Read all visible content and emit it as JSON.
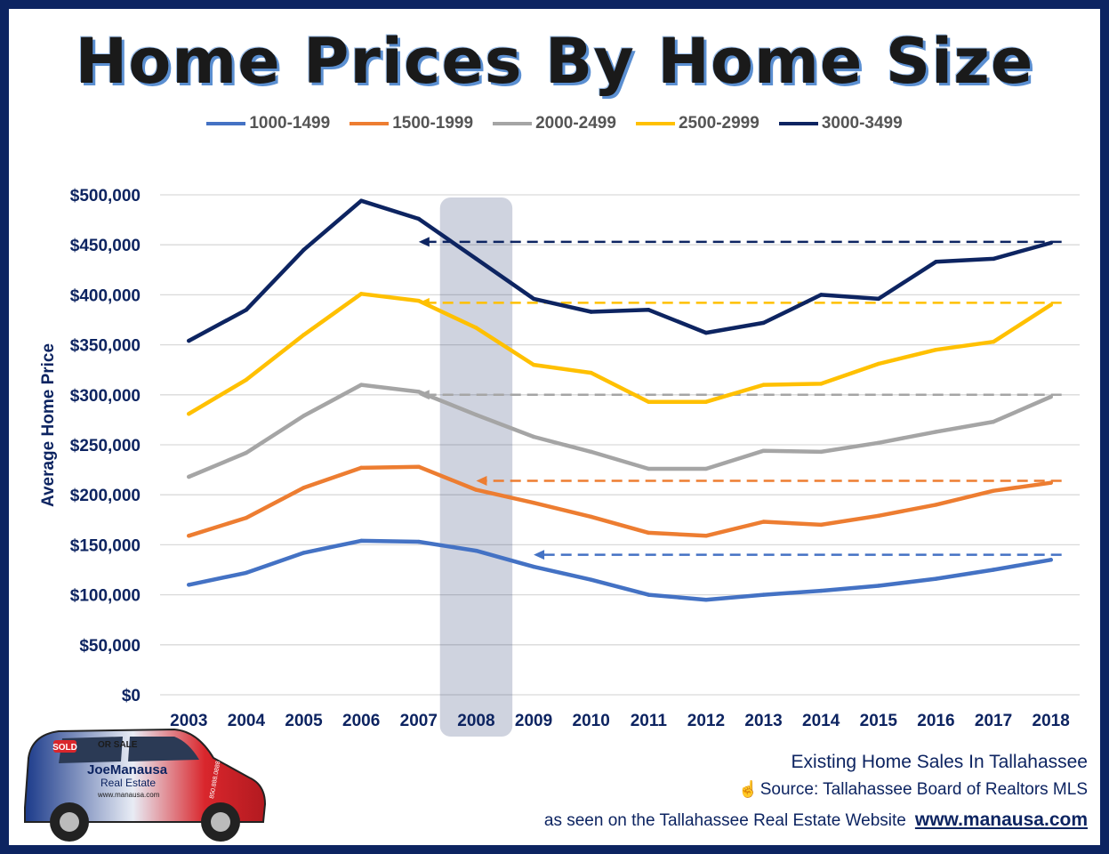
{
  "title": "Home Prices By Home Size",
  "y_axis_title": "Average Home Price",
  "footer": {
    "line1": "Existing Home Sales In Tallahassee",
    "line2_icon": "hand-icon",
    "line2": "Source: Tallahassee Board of Realtors MLS",
    "line3": "as seen on the Tallahassee Real Estate Website",
    "url": "www.manausa.com"
  },
  "car": {
    "sold_sign": "SOLD",
    "for_sale_sign": "OR SALE",
    "brand_line1": "JoeManausa",
    "brand_line2": "Real Estate",
    "website": "www.manausa.com",
    "phone": "850.888.0888"
  },
  "chart_data": {
    "type": "line",
    "title": "Home Prices By Home Size",
    "xlabel": "",
    "ylabel": "Average Home Price",
    "categories": [
      "2003",
      "2004",
      "2005",
      "2006",
      "2007",
      "2008",
      "2009",
      "2010",
      "2011",
      "2012",
      "2013",
      "2014",
      "2015",
      "2016",
      "2017",
      "2018"
    ],
    "ylim": [
      0,
      500000
    ],
    "y_ticks": [
      0,
      50000,
      100000,
      150000,
      200000,
      250000,
      300000,
      350000,
      400000,
      450000,
      500000
    ],
    "y_tick_labels": [
      "$0",
      "$50,000",
      "$100,000",
      "$150,000",
      "$200,000",
      "$250,000",
      "$300,000",
      "$350,000",
      "$400,000",
      "$450,000",
      "$500,000"
    ],
    "grid": true,
    "legend_position": "top",
    "highlight_category": "2008",
    "series": [
      {
        "name": "1000-1499",
        "color": "#4472c4",
        "values": [
          110000,
          122000,
          142000,
          154000,
          153000,
          144000,
          128000,
          115000,
          100000,
          95000,
          100000,
          104000,
          109000,
          116000,
          125000,
          135000
        ],
        "reference_value": 140000,
        "reference_from": "2009"
      },
      {
        "name": "1500-1999",
        "color": "#ed7d31",
        "values": [
          159000,
          177000,
          207000,
          227000,
          228000,
          205000,
          192000,
          178000,
          162000,
          159000,
          173000,
          170000,
          179000,
          190000,
          204000,
          212000
        ],
        "reference_value": 214000,
        "reference_from": "2008"
      },
      {
        "name": "2000-2499",
        "color": "#a5a5a5",
        "values": [
          218000,
          242000,
          279000,
          310000,
          303000,
          280000,
          258000,
          243000,
          226000,
          226000,
          244000,
          243000,
          252000,
          263000,
          273000,
          298000
        ],
        "reference_value": 300000,
        "reference_from": "2007"
      },
      {
        "name": "2500-2999",
        "color": "#ffc000",
        "values": [
          281000,
          315000,
          360000,
          401000,
          394000,
          367000,
          330000,
          322000,
          293000,
          293000,
          310000,
          311000,
          331000,
          345000,
          353000,
          390000
        ],
        "reference_value": 392000,
        "reference_from": "2007"
      },
      {
        "name": "3000-3499",
        "color": "#0d2461",
        "values": [
          354000,
          385000,
          445000,
          494000,
          476000,
          436000,
          396000,
          383000,
          385000,
          362000,
          372000,
          400000,
          396000,
          433000,
          436000,
          452000
        ],
        "reference_value": 453000,
        "reference_from": "2007"
      }
    ]
  }
}
